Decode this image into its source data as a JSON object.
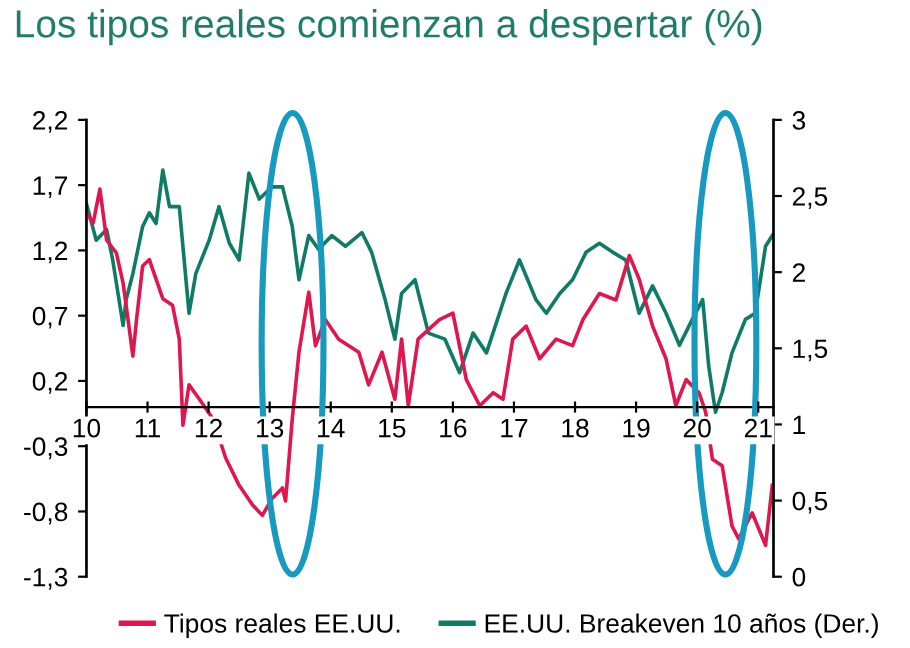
{
  "chart_data": {
    "type": "line",
    "title": "Los tipos reales comienzan a despertar (%)",
    "xlim": [
      10,
      21.25
    ],
    "xticks": [
      10,
      11,
      12,
      13,
      14,
      15,
      16,
      17,
      18,
      19,
      20,
      21
    ],
    "ylim": [
      -1.3,
      2.2
    ],
    "yticks": [
      {
        "value": -1.3,
        "label": "-1,3"
      },
      {
        "value": -0.8,
        "label": "-0,8"
      },
      {
        "value": -0.3,
        "label": "-0,3"
      },
      {
        "value": 0.2,
        "label": "0,2"
      },
      {
        "value": 0.7,
        "label": "0,7"
      },
      {
        "value": 1.2,
        "label": "1,2"
      },
      {
        "value": 1.7,
        "label": "1,7"
      },
      {
        "value": 2.2,
        "label": "2,2"
      }
    ],
    "y2lim": [
      0,
      3
    ],
    "y2ticks": [
      0,
      {
        "value": 0.5,
        "label": "0,5"
      },
      1,
      {
        "value": 1.5,
        "label": "1,5"
      },
      2,
      {
        "value": 2.5,
        "label": "2,5"
      },
      3
    ],
    "legend": "bottom",
    "grid": false,
    "marker": "none",
    "line_style": "solid",
    "series": [
      {
        "name": "Tipos reales EE.UU.",
        "color": "#e0174f",
        "x": [
          10.0,
          10.11,
          10.22,
          10.33,
          10.49,
          10.6,
          10.71,
          10.76,
          10.82,
          10.92,
          11.03,
          11.14,
          11.25,
          11.41,
          11.52,
          11.58,
          11.68,
          11.85,
          12.07,
          12.28,
          12.5,
          12.72,
          12.88,
          13.04,
          13.21,
          13.26,
          13.37,
          13.48,
          13.64,
          13.75,
          13.91,
          14.13,
          14.46,
          14.62,
          14.84,
          15.05,
          15.16,
          15.27,
          15.43,
          15.78,
          16.0,
          16.22,
          16.44,
          16.66,
          16.82,
          16.98,
          17.2,
          17.42,
          17.69,
          17.96,
          18.13,
          18.4,
          18.67,
          18.89,
          19.05,
          19.27,
          19.49,
          19.65,
          19.82,
          20.03,
          20.14,
          20.25,
          20.41,
          20.57,
          20.68,
          20.9,
          21.12,
          21.23
        ],
        "values": [
          1.49,
          1.41,
          1.67,
          1.28,
          1.18,
          0.95,
          0.57,
          0.39,
          0.67,
          1.08,
          1.13,
          0.98,
          0.83,
          0.78,
          0.52,
          -0.14,
          0.17,
          0.06,
          -0.09,
          -0.39,
          -0.6,
          -0.75,
          -0.83,
          -0.7,
          -0.62,
          -0.72,
          -0.09,
          0.42,
          0.88,
          0.47,
          0.67,
          0.52,
          0.42,
          0.17,
          0.42,
          0.06,
          0.52,
          0.01,
          0.52,
          0.67,
          0.72,
          0.21,
          0.01,
          0.11,
          0.06,
          0.52,
          0.62,
          0.37,
          0.52,
          0.47,
          0.67,
          0.87,
          0.82,
          1.16,
          0.98,
          0.62,
          0.37,
          0.01,
          0.21,
          0.11,
          -0.04,
          -0.4,
          -0.45,
          -0.91,
          -1.01,
          -0.81,
          -1.06,
          -0.6
        ]
      },
      {
        "name": "EE.UU. Breakeven 10 años (Der.)",
        "color": "#0f7b66",
        "axis": "y2",
        "x": [
          10.0,
          10.16,
          10.33,
          10.43,
          10.6,
          10.65,
          10.76,
          10.92,
          11.03,
          11.14,
          11.25,
          11.36,
          11.52,
          11.68,
          11.79,
          12.01,
          12.17,
          12.34,
          12.5,
          12.66,
          12.83,
          13.04,
          13.21,
          13.37,
          13.48,
          13.64,
          13.8,
          14.02,
          14.24,
          14.51,
          14.67,
          14.89,
          15.05,
          15.16,
          15.38,
          15.6,
          15.87,
          16.11,
          16.33,
          16.55,
          16.87,
          17.09,
          17.36,
          17.53,
          17.75,
          17.96,
          18.18,
          18.4,
          18.62,
          18.83,
          19.05,
          19.27,
          19.49,
          19.71,
          19.92,
          20.09,
          20.19,
          20.3,
          20.41,
          20.57,
          20.79,
          20.95,
          21.12,
          21.23
        ],
        "values": [
          2.45,
          2.21,
          2.28,
          2.08,
          1.65,
          1.82,
          1.99,
          2.3,
          2.39,
          2.32,
          2.67,
          2.43,
          2.43,
          1.73,
          1.99,
          2.21,
          2.43,
          2.19,
          2.08,
          2.65,
          2.48,
          2.56,
          2.56,
          2.3,
          1.95,
          2.24,
          2.15,
          2.24,
          2.17,
          2.26,
          2.13,
          1.82,
          1.56,
          1.86,
          1.95,
          1.6,
          1.56,
          1.34,
          1.6,
          1.47,
          1.86,
          2.08,
          1.82,
          1.73,
          1.86,
          1.95,
          2.13,
          2.19,
          2.13,
          2.08,
          1.73,
          1.91,
          1.73,
          1.52,
          1.69,
          1.82,
          1.38,
          1.08,
          1.21,
          1.47,
          1.69,
          1.73,
          2.17,
          2.24
        ]
      }
    ]
  }
}
